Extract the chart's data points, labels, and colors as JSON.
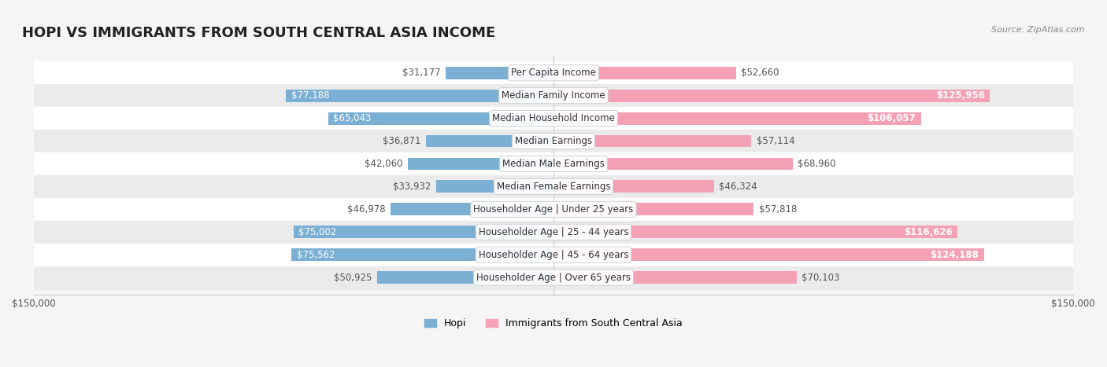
{
  "title": "HOPI VS IMMIGRANTS FROM SOUTH CENTRAL ASIA INCOME",
  "source": "Source: ZipAtlas.com",
  "categories": [
    "Per Capita Income",
    "Median Family Income",
    "Median Household Income",
    "Median Earnings",
    "Median Male Earnings",
    "Median Female Earnings",
    "Householder Age | Under 25 years",
    "Householder Age | 25 - 44 years",
    "Householder Age | 45 - 64 years",
    "Householder Age | Over 65 years"
  ],
  "hopi_values": [
    31177,
    77188,
    65043,
    36871,
    42060,
    33932,
    46978,
    75002,
    75562,
    50925
  ],
  "immigrant_values": [
    52660,
    125956,
    106057,
    57114,
    68960,
    46324,
    57818,
    116626,
    124188,
    70103
  ],
  "hopi_labels": [
    "$31,177",
    "$77,188",
    "$65,043",
    "$36,871",
    "$42,060",
    "$33,932",
    "$46,978",
    "$75,002",
    "$75,562",
    "$50,925"
  ],
  "immigrant_labels": [
    "$52,660",
    "$125,956",
    "$106,057",
    "$57,114",
    "$68,960",
    "$46,324",
    "$57,818",
    "$116,626",
    "$124,188",
    "$70,103"
  ],
  "hopi_color": "#7bafd4",
  "immigrant_color": "#f4a0b5",
  "hopi_label_color_normal": "#555555",
  "immigrant_label_color_normal": "#555555",
  "hopi_label_color_white": "#ffffff",
  "immigrant_label_color_white": "#ffffff",
  "max_value": 150000,
  "xlim": 150000,
  "bar_height": 0.55,
  "background_color": "#f5f5f5",
  "row_bg_color": "#ffffff",
  "row_bg_color_alt": "#f0f0f0",
  "legend_hopi": "Hopi",
  "legend_immigrant": "Immigrants from South Central Asia",
  "title_fontsize": 13,
  "label_fontsize": 8.5,
  "category_fontsize": 8.5,
  "axis_fontsize": 8.5
}
